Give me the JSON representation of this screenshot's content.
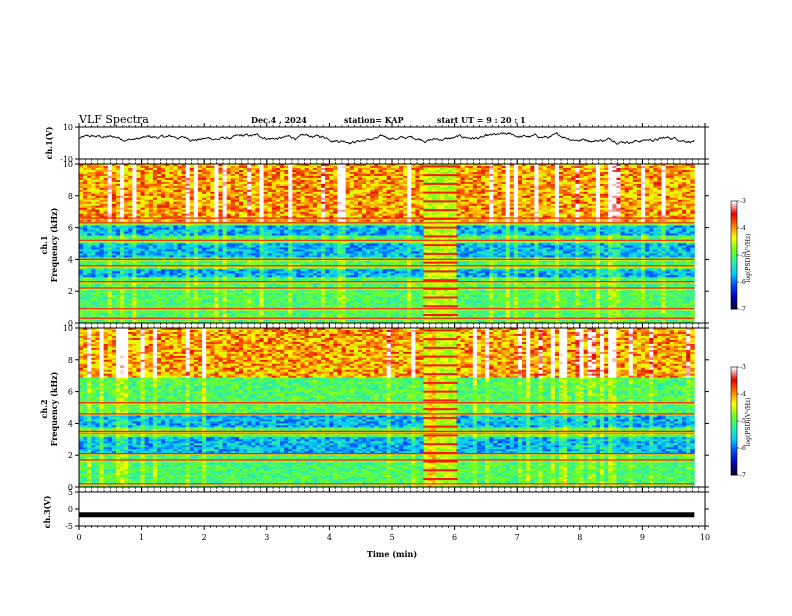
{
  "header": {
    "title": "VLF Spectra",
    "date": "Dec.4 , 2024",
    "station": "station= KAP",
    "start": "start UT =  9 : 20 : 1"
  },
  "panels": {
    "ch1_wave_label": "ch.1(V)",
    "ch1_spec_label": "ch.1\nFrequency (kHz)",
    "ch2_spec_label": "ch.2\nFrequency (kHz)",
    "ch3_wave_label": "ch.3(V)",
    "xlabel": "Time (min)",
    "colorbar_label": "log(PSD)(V²/Hz)"
  },
  "chart_data": [
    {
      "type": "line",
      "name": "ch.1 waveform",
      "ylabel": "ch.1(V)",
      "ylim": [
        -10,
        10
      ],
      "yticks": [
        -10,
        10
      ],
      "xlim": [
        0,
        10
      ],
      "x_extent_data": [
        0,
        9.83
      ],
      "approx_mean": 3,
      "approx_range": [
        -2,
        8
      ]
    },
    {
      "type": "heatmap",
      "name": "ch.1 spectrogram",
      "ylabel": "ch.1 Frequency (kHz)",
      "ylim": [
        0,
        10
      ],
      "yticks": [
        0,
        2,
        4,
        6,
        8,
        10
      ],
      "xlim": [
        0,
        10
      ],
      "time_extent_min": [
        0,
        9.83
      ],
      "bright_band_interval_min": [
        5.5,
        6.05
      ],
      "colorbar": {
        "ticks": [
          -3,
          -4,
          -5,
          -6,
          -7
        ],
        "range": [
          -7,
          -3
        ]
      },
      "features": [
        {
          "type": "strong_emission_kHz",
          "range": [
            6.5,
            10
          ]
        },
        {
          "type": "horizontal_lines_kHz",
          "values": [
            0.3,
            0.9,
            2.2,
            2.6,
            3.6,
            4.0,
            5.2,
            6.3,
            6.6
          ]
        },
        {
          "type": "weak_bands_kHz",
          "ranges": [
            [
              2.9,
              3.4
            ],
            [
              4.2,
              5.1
            ],
            [
              5.6,
              6.2
            ]
          ]
        }
      ]
    },
    {
      "type": "heatmap",
      "name": "ch.2 spectrogram",
      "ylabel": "ch.2 Frequency (kHz)",
      "ylim": [
        0,
        10
      ],
      "yticks": [
        0,
        2,
        4,
        6,
        8,
        10
      ],
      "xlim": [
        0,
        10
      ],
      "time_extent_min": [
        0,
        9.83
      ],
      "bright_band_interval_min": [
        5.5,
        6.05
      ],
      "colorbar": {
        "ticks": [
          -3,
          -4,
          -5,
          -6,
          -7
        ],
        "range": [
          -7,
          -3
        ]
      },
      "features": [
        {
          "type": "strong_emission_kHz",
          "range": [
            7,
            10
          ]
        },
        {
          "type": "horizontal_lines_kHz",
          "values": [
            0.2,
            1.7,
            2.1,
            3.4,
            3.5,
            4.6,
            5.3
          ]
        },
        {
          "type": "weak_bands_kHz",
          "ranges": [
            [
              2.2,
              3.2
            ],
            [
              3.8,
              4.6
            ]
          ]
        }
      ]
    },
    {
      "type": "line",
      "name": "ch.3 waveform",
      "ylabel": "ch.3(V)",
      "ylim": [
        -5,
        5
      ],
      "yticks": [
        -5,
        0,
        5
      ],
      "xlim": [
        0,
        10
      ],
      "x_extent_data": [
        0,
        9.83
      ],
      "value": -1.7
    }
  ],
  "xaxis": {
    "label": "Time (min)",
    "ticks": [
      0,
      1,
      2,
      3,
      4,
      5,
      6,
      7,
      8,
      9,
      10
    ],
    "range": [
      0,
      10
    ]
  },
  "colors": {
    "colormap": [
      "#00002a",
      "#0000a6",
      "#0040ff",
      "#00c8ff",
      "#30f0a0",
      "#70ff20",
      "#ffff00",
      "#ff8000",
      "#e00000",
      "#ffffff"
    ]
  }
}
